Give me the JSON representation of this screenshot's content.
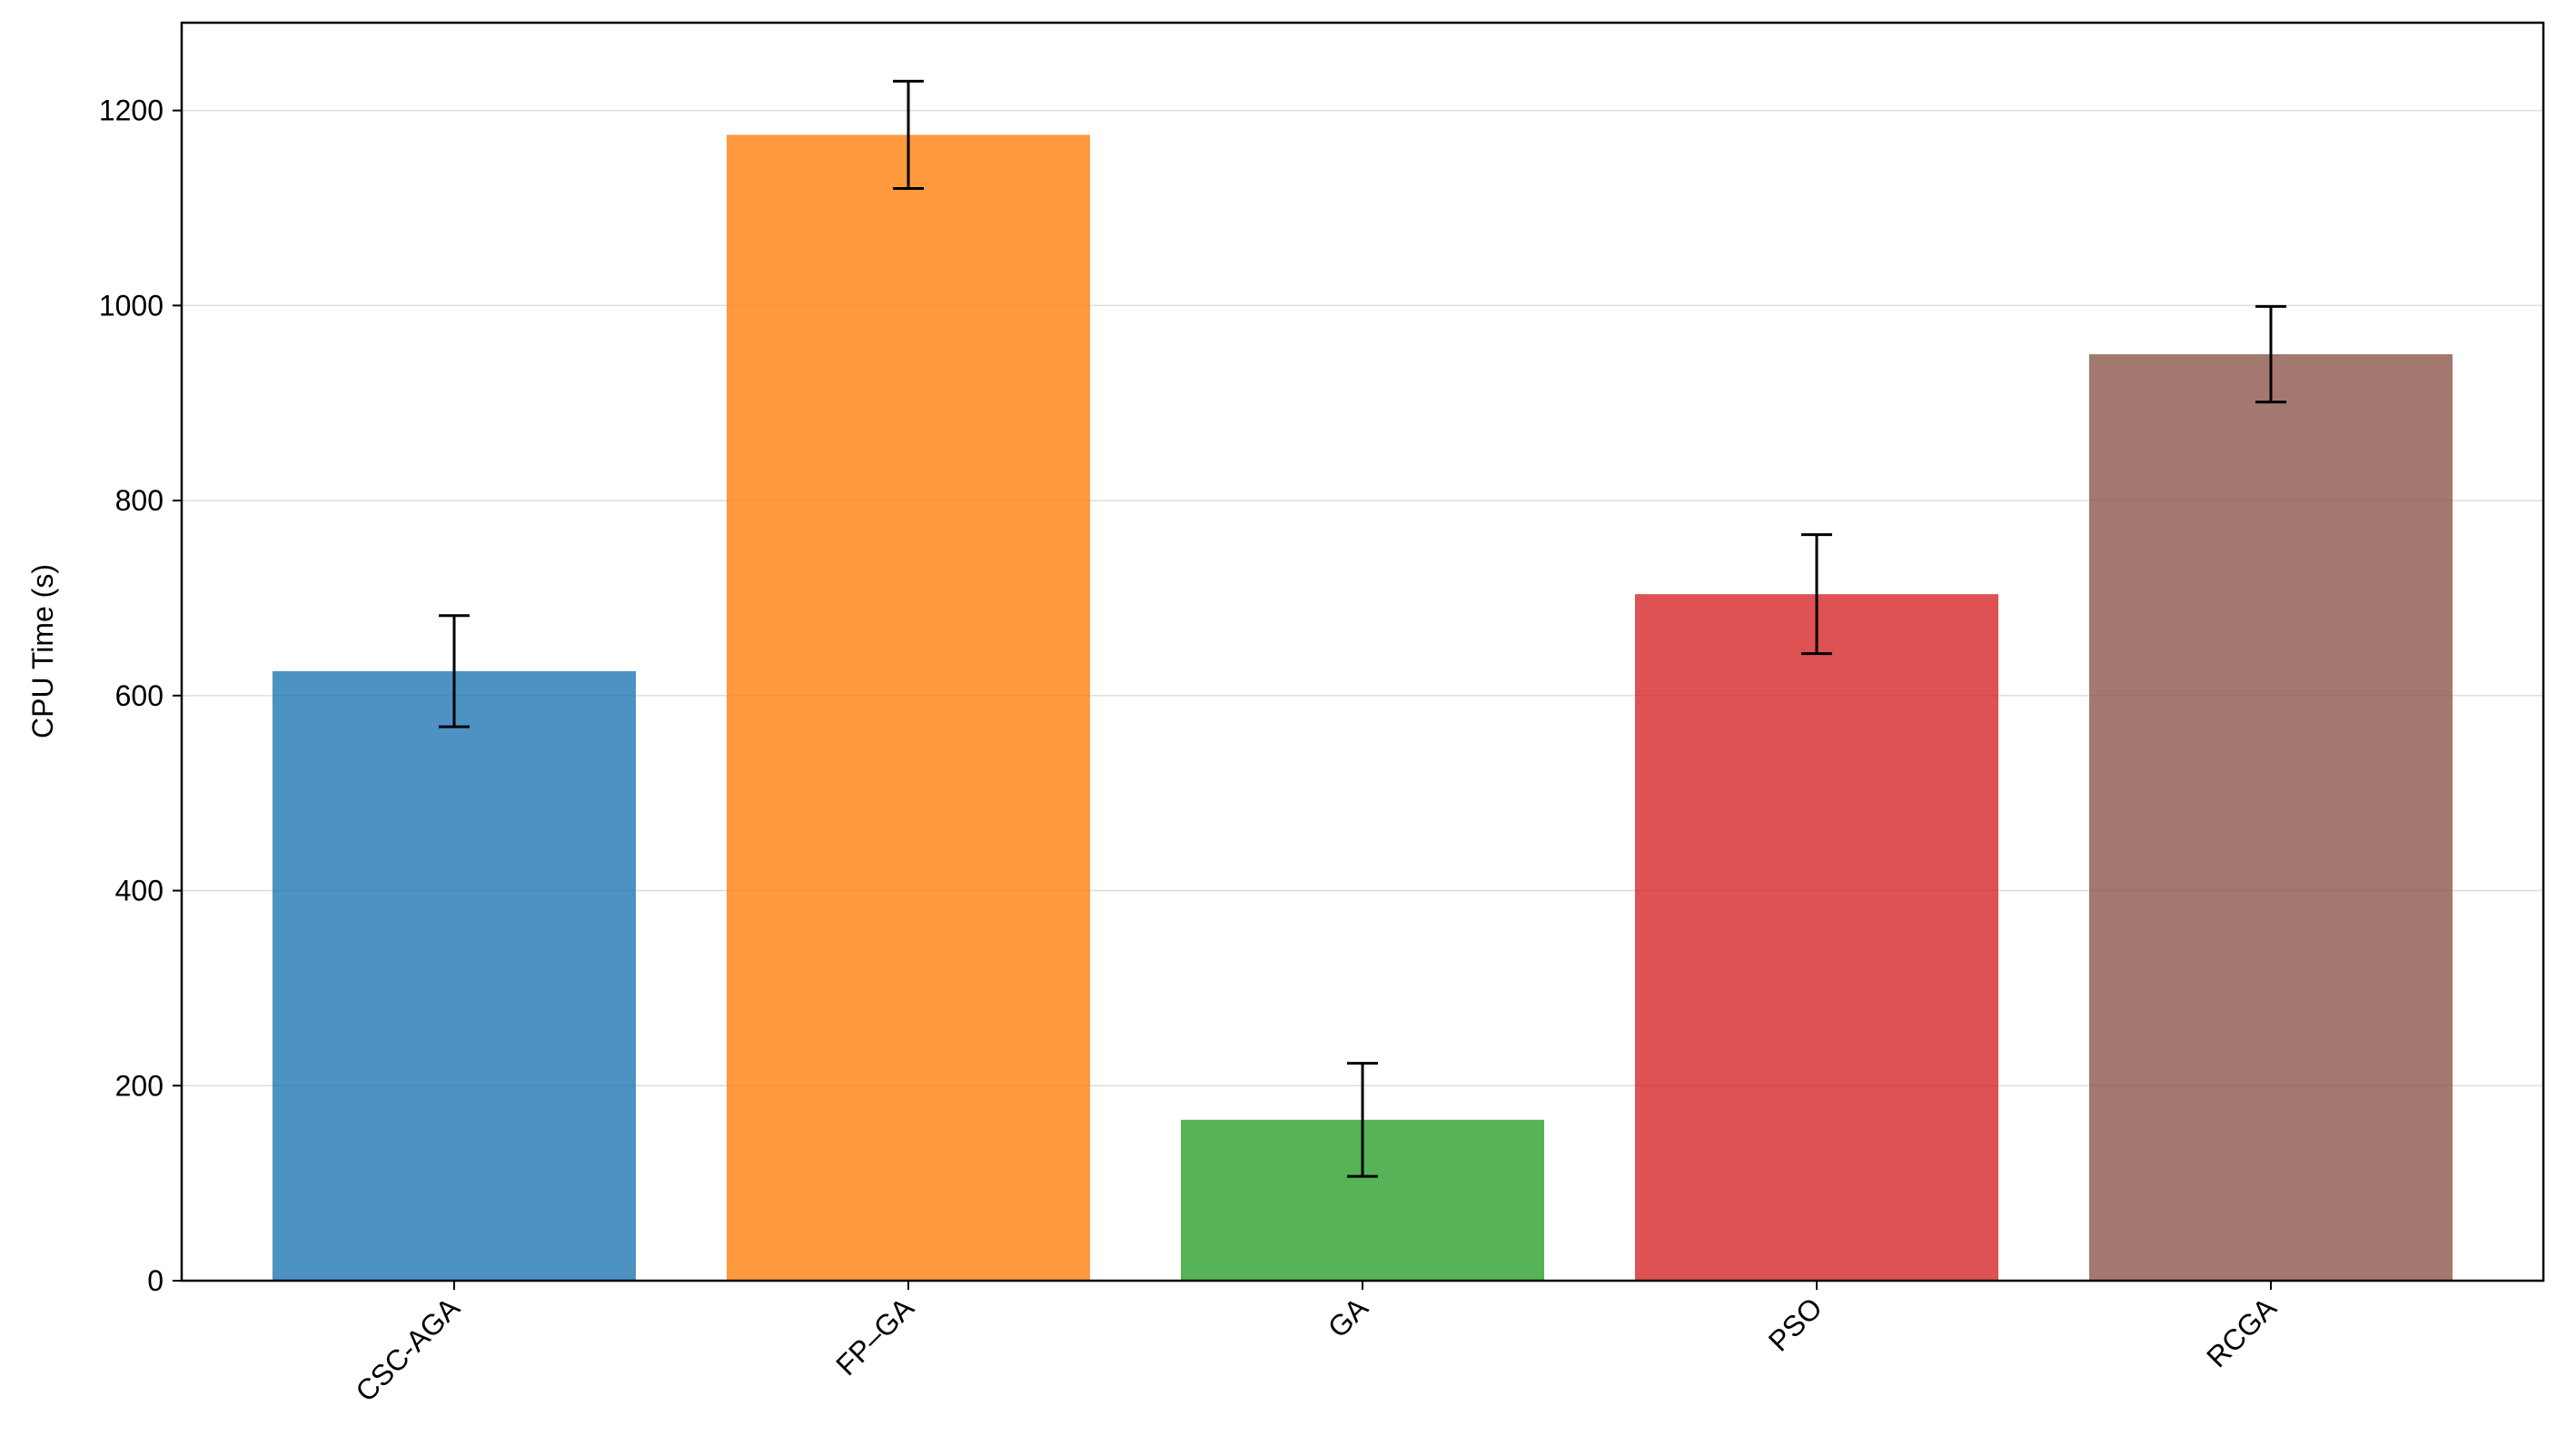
{
  "chart_data": {
    "type": "bar",
    "title": "",
    "xlabel": "",
    "ylabel": "CPU Time (s)",
    "categories": [
      "CSC-AGA",
      "FP–GA",
      "GA",
      "PSO",
      "RCGA"
    ],
    "values": [
      625,
      1175,
      165,
      704,
      950
    ],
    "error": [
      57,
      55,
      58,
      61,
      49
    ],
    "colors": [
      "#1f77b4",
      "#ff7f0e",
      "#2ca02c",
      "#d62728",
      "#8c564b"
    ],
    "bar_opacity": 0.8,
    "ylim": [
      0,
      1290
    ],
    "yticks": [
      0,
      200,
      400,
      600,
      800,
      1000,
      1200
    ],
    "grid": "horizontal",
    "legend": "none"
  }
}
